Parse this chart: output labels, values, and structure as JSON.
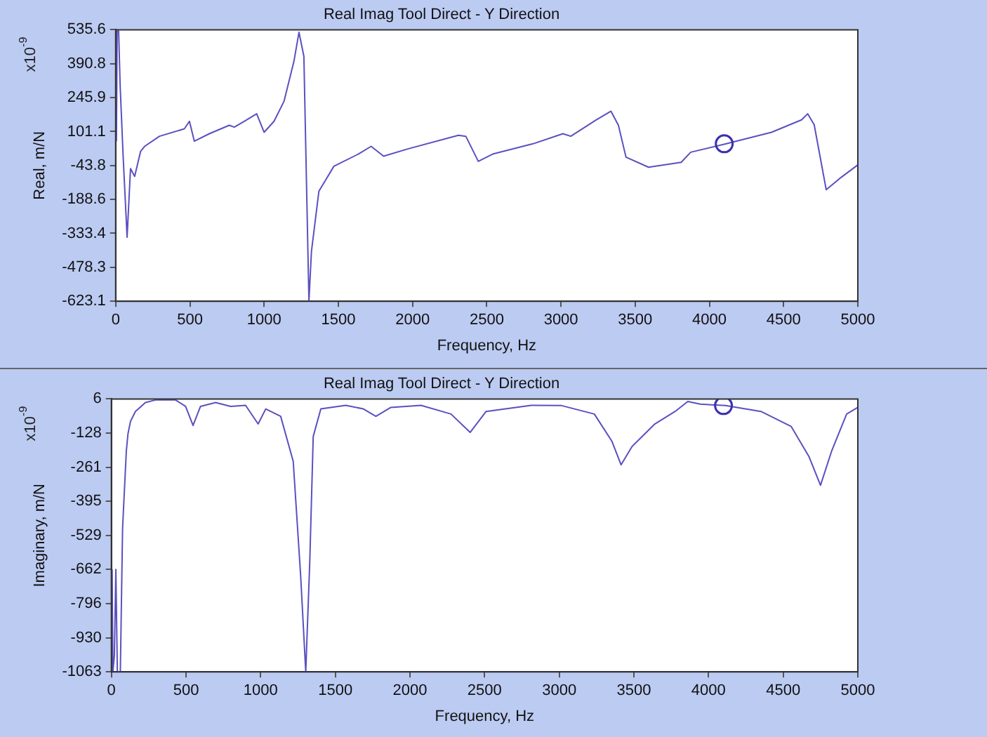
{
  "chart_data": [
    {
      "type": "line",
      "title": "Real Imag Tool Direct - Y Direction",
      "xlabel": "Frequency, Hz",
      "ylabel": "Real, m/N",
      "annotations": [
        "x10$^{-9}$"
      ],
      "xlim": [
        0,
        5000
      ],
      "xticks": [
        0,
        500,
        1000,
        1500,
        2000,
        2500,
        3000,
        3500,
        4000,
        4500,
        5000
      ],
      "ylim": [
        -623.1,
        535.6
      ],
      "yticks": [
        -623.1,
        -478.3,
        -333.4,
        -188.6,
        -43.8,
        101.1,
        245.9,
        390.8,
        535.6
      ],
      "grid": false,
      "legend": false,
      "marker": "none",
      "series": [
        {
          "color": "#5a50c0",
          "x": [
            5,
            10,
            20,
            30,
            50,
            77,
            100,
            128,
            168,
            195,
            295,
            463,
            497,
            530,
            631,
            765,
            799,
            866,
            950,
            1000,
            1067,
            1134,
            1201,
            1235,
            1268,
            1302,
            1319,
            1369,
            1470,
            1638,
            1721,
            1805,
            1973,
            2309,
            2359,
            2443,
            2544,
            2812,
            3013,
            3066,
            3235,
            3337,
            3387,
            3438,
            3590,
            3810,
            3874,
            4114,
            4418,
            4621,
            4662,
            4706,
            4787,
            4888,
            5000
          ],
          "values": [
            60,
            530,
            530,
            300,
            0,
            -350,
            -57,
            -90,
            17,
            38,
            81,
            113,
            145,
            60,
            92,
            128,
            120,
            145,
            177,
            98,
            145,
            230,
            401,
            525,
            422,
            -623,
            -410,
            -154,
            -47,
            6,
            38,
            -4,
            28,
            85,
            81,
            -26,
            6,
            49,
            92,
            81,
            150,
            188,
            128,
            -8,
            -51,
            -30,
            13,
            49,
            98,
            151,
            177,
            130,
            -147,
            -94,
            -41
          ]
        },
        {
          "type": "scatter",
          "marker": "circle",
          "color": "#3a30b0",
          "x": [
            4100
          ],
          "values": [
            49
          ]
        }
      ]
    },
    {
      "type": "line",
      "title": "Real Imag Tool Direct - Y Direction",
      "xlabel": "Frequency, Hz",
      "ylabel": "Imaginary, m/N",
      "annotations": [
        "x10$^{-9}$"
      ],
      "xlim": [
        0,
        5000
      ],
      "xticks": [
        0,
        500,
        1000,
        1500,
        2000,
        2500,
        3000,
        3500,
        4000,
        4500,
        5000
      ],
      "ylim": [
        -1063,
        6
      ],
      "yticks": [
        -1063,
        -930,
        -796,
        -662,
        -529,
        -395,
        -261,
        -128,
        6
      ],
      "grid": false,
      "legend": false,
      "marker": "none",
      "series": [
        {
          "color": "#5a50c0",
          "x": [
            5,
            10,
            20,
            30,
            40,
            60,
            75,
            100,
            111,
            128,
            161,
            228,
            295,
            430,
            497,
            547,
            597,
            698,
            799,
            899,
            983,
            1034,
            1134,
            1218,
            1268,
            1302,
            1329,
            1352,
            1403,
            1570,
            1688,
            1772,
            1872,
            2074,
            2275,
            2403,
            2510,
            2812,
            3016,
            3235,
            3353,
            3414,
            3488,
            3640,
            3776,
            3861,
            3945,
            4114,
            4351,
            4554,
            4672,
            4750,
            4824,
            4925,
            5000
          ],
          "values": [
            -662,
            -1063,
            -1000,
            -662,
            -1063,
            -1063,
            -500,
            -199,
            -131,
            -82,
            -43,
            -8,
            2,
            2,
            -23,
            -98,
            -23,
            -8,
            -23,
            -19,
            -92,
            -33,
            -62,
            -238,
            -688,
            -1063,
            -629,
            -141,
            -33,
            -19,
            -33,
            -62,
            -27,
            -19,
            -53,
            -125,
            -43,
            -19,
            -20,
            -53,
            -160,
            -252,
            -180,
            -92,
            -43,
            -4,
            -14,
            -20,
            -43,
            -102,
            -219,
            -332,
            -199,
            -53,
            -27
          ]
        },
        {
          "type": "scatter",
          "marker": "circle",
          "color": "#3a30b0",
          "x": [
            4100
          ],
          "values": [
            -20
          ]
        }
      ]
    }
  ]
}
